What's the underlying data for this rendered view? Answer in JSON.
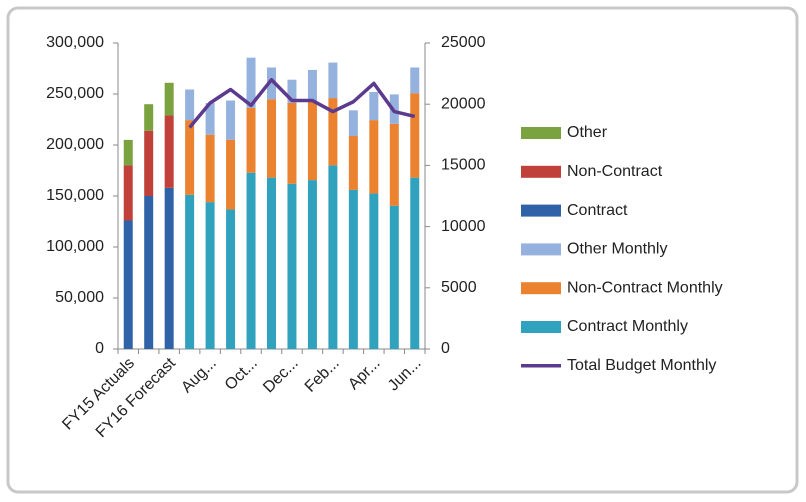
{
  "chart_data": {
    "type": "bar",
    "categories": [
      "FY15 Actuals",
      null,
      "FY16 Forecast",
      null,
      "Aug...",
      null,
      "Oct...",
      null,
      "Dec...",
      null,
      "Feb...",
      null,
      "Apr...",
      null,
      "Jun..."
    ],
    "series": [
      {
        "name": "Contract",
        "color": "#2f62a6",
        "type": "bar",
        "values": [
          126000,
          150000,
          158000,
          null,
          null,
          null,
          null,
          null,
          null,
          null,
          null,
          null,
          null,
          null,
          null
        ]
      },
      {
        "name": "Non-Contract",
        "color": "#c0403a",
        "type": "bar",
        "values": [
          54000,
          64000,
          71000,
          null,
          null,
          null,
          null,
          null,
          null,
          null,
          null,
          null,
          null,
          null,
          null
        ]
      },
      {
        "name": "Other",
        "color": "#7aa23f",
        "type": "bar",
        "values": [
          25000,
          26000,
          32000,
          null,
          null,
          null,
          null,
          null,
          null,
          null,
          null,
          null,
          null,
          null,
          null
        ]
      },
      {
        "name": "Contract Monthly",
        "color": "#31a2bd",
        "type": "bar",
        "axis": "y2",
        "values": [
          null,
          null,
          null,
          12600,
          12000,
          11400,
          14400,
          14000,
          13500,
          13800,
          15000,
          13000,
          12700,
          11700,
          14000
        ]
      },
      {
        "name": "Non-Contract Monthly",
        "color": "#ea8230",
        "type": "bar",
        "axis": "y2",
        "values": [
          null,
          null,
          null,
          6100,
          5500,
          5700,
          5300,
          6400,
          6600,
          6400,
          5500,
          4400,
          6000,
          6700,
          6900
        ]
      },
      {
        "name": "Other Monthly",
        "color": "#95b1de",
        "type": "bar",
        "axis": "y2",
        "values": [
          null,
          null,
          null,
          2500,
          2600,
          3200,
          4100,
          2600,
          1900,
          2600,
          2900,
          2100,
          2300,
          2400,
          2100
        ]
      },
      {
        "name": "Total Budget Monthly",
        "color": "#5c3a8e",
        "type": "line",
        "axis": "y2",
        "values": [
          null,
          null,
          null,
          18100,
          20100,
          21200,
          19900,
          22000,
          20300,
          20300,
          19400,
          20200,
          21700,
          19400,
          19000
        ]
      }
    ],
    "ylim": [
      0,
      300000
    ],
    "yticks": [
      0,
      {
        "value": 50000,
        "label": "50,000"
      },
      {
        "value": 100000,
        "label": "100,000"
      },
      {
        "value": 150000,
        "label": "150,000"
      },
      {
        "value": 200000,
        "label": "200,000"
      },
      {
        "value": 250000,
        "label": "250,000"
      },
      {
        "value": 300000,
        "label": "300,000"
      }
    ],
    "y2lim": [
      0,
      25000
    ],
    "y2ticks": [
      0,
      5000,
      10000,
      15000,
      20000,
      25000
    ],
    "grid": false,
    "legend": "right"
  }
}
